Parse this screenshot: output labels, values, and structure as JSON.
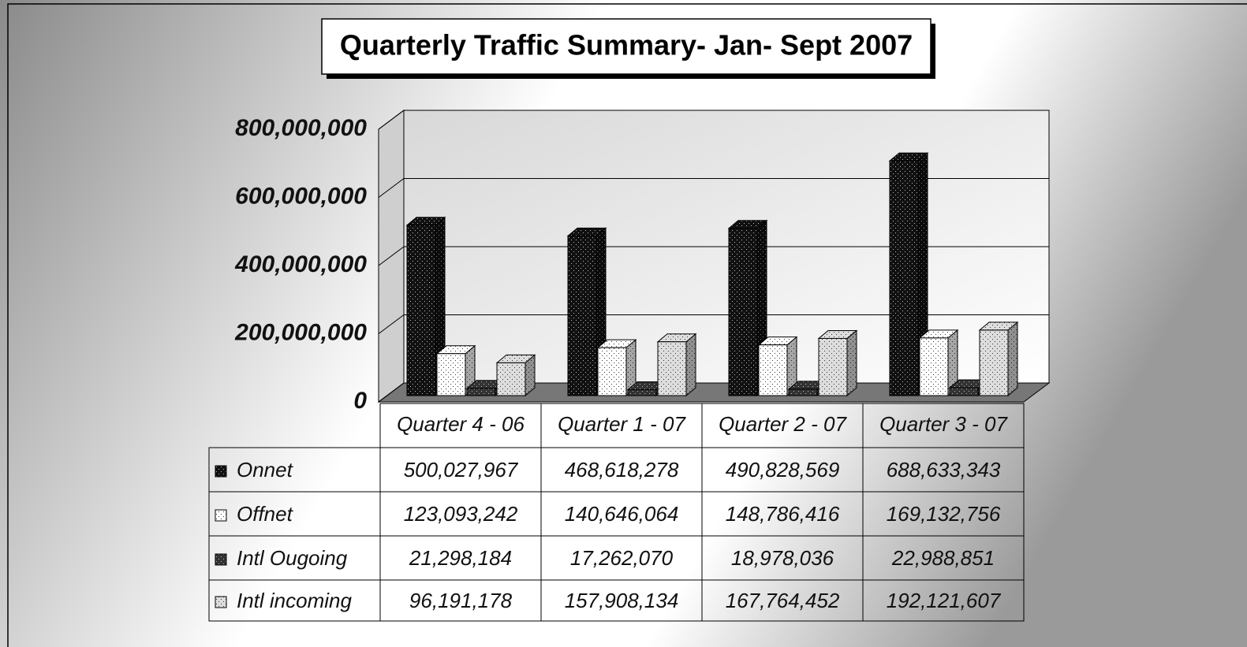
{
  "chart_data": {
    "type": "bar",
    "title": "Quarterly Traffic Summary- Jan- Sept 2007",
    "categories": [
      "Quarter 4 - 06",
      "Quarter 1 - 07",
      "Quarter 2 - 07",
      "Quarter 3 - 07"
    ],
    "series": [
      {
        "name": "Onnet",
        "color": "#111111",
        "values": [
          500027967,
          468618278,
          490828569,
          688633343
        ],
        "value_labels": [
          "500,027,967",
          "468,618,278",
          "490,828,569",
          "688,633,343"
        ]
      },
      {
        "name": "Offnet",
        "color": "#ffffff",
        "values": [
          123093242,
          140646064,
          148786416,
          169132756
        ],
        "value_labels": [
          "123,093,242",
          "140,646,064",
          "148,786,416",
          "169,132,756"
        ]
      },
      {
        "name": "Intl Ougoing",
        "color": "#333333",
        "values": [
          21298184,
          17262070,
          18978036,
          22988851
        ],
        "value_labels": [
          "21,298,184",
          "17,262,070",
          "18,978,036",
          "22,988,851"
        ]
      },
      {
        "name": "Intl incoming",
        "color": "#dddddd",
        "values": [
          96191178,
          157908134,
          167764452,
          192121607
        ],
        "value_labels": [
          "96,191,178",
          "157,908,134",
          "167,764,452",
          "192,121,607"
        ]
      }
    ],
    "ylim": [
      0,
      800000000
    ],
    "yticks": [
      0,
      {
        "value": 200000000,
        "label": "200,000,000"
      },
      {
        "value": 400000000,
        "label": "400,000,000"
      },
      {
        "value": 600000000,
        "label": "600,000,000"
      },
      {
        "value": 800000000,
        "label": "800,000,000"
      }
    ],
    "grid": true
  }
}
